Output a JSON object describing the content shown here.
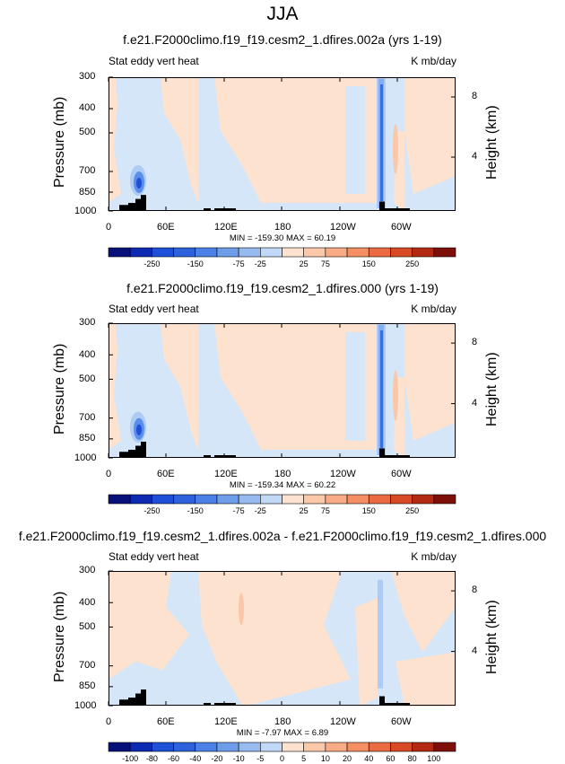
{
  "figure_title": "JJA",
  "colors": {
    "ocean_light_blue": "#d4e6f7",
    "land_peach": "#fde3cf",
    "jet_blue": "#3a6fe0",
    "topo_black": "#000000"
  },
  "chart_data": [
    {
      "type": "heatmap",
      "title": "f.e21.F2000climo.f19_f19.cesm2_1.dfires.002a (yrs 1-19)",
      "left_label": "Stat eddy vert heat",
      "units": "K mb/day",
      "xlabel": "",
      "ylabel": "Pressure (mb)",
      "ylabel_right": "Height (km)",
      "xticks": [
        "0",
        "60E",
        "120E",
        "180",
        "120W",
        "60W"
      ],
      "yticks": [
        "300",
        "400",
        "500",
        "700",
        "850",
        "1000"
      ],
      "yticks_right": [
        "8",
        "4"
      ],
      "min_max_text": "MIN = -159.30   MAX = 60.19",
      "min": -159.3,
      "max": 60.19,
      "colorbar_labels": [
        "-250",
        "-150",
        "-75",
        "-25",
        "25",
        "75",
        "150",
        "250"
      ],
      "colorbar_levels": [
        -250,
        -200,
        -150,
        -100,
        -75,
        -50,
        -25,
        0,
        25,
        50,
        75,
        100,
        150,
        200,
        250
      ]
    },
    {
      "type": "heatmap",
      "title": "f.e21.F2000climo.f19_f19.cesm2_1.dfires.000 (yrs 1-19)",
      "left_label": "Stat eddy vert heat",
      "units": "K mb/day",
      "xlabel": "",
      "ylabel": "Pressure (mb)",
      "ylabel_right": "Height (km)",
      "xticks": [
        "0",
        "60E",
        "120E",
        "180",
        "120W",
        "60W"
      ],
      "yticks": [
        "300",
        "400",
        "500",
        "700",
        "850",
        "1000"
      ],
      "yticks_right": [
        "8",
        "4"
      ],
      "min_max_text": "MIN = -159.34   MAX = 60.22",
      "min": -159.34,
      "max": 60.22,
      "colorbar_labels": [
        "-250",
        "-150",
        "-75",
        "-25",
        "25",
        "75",
        "150",
        "250"
      ],
      "colorbar_levels": [
        -250,
        -200,
        -150,
        -100,
        -75,
        -50,
        -25,
        0,
        25,
        50,
        75,
        100,
        150,
        200,
        250
      ]
    },
    {
      "type": "heatmap",
      "title": "f.e21.F2000climo.f19_f19.cesm2_1.dfires.002a - f.e21.F2000climo.f19_f19.cesm2_1.dfires.000",
      "left_label": "Stat eddy vert heat",
      "units": "K mb/day",
      "xlabel": "",
      "ylabel": "Pressure (mb)",
      "ylabel_right": "Height (km)",
      "xticks": [
        "0",
        "60E",
        "120E",
        "180",
        "120W",
        "60W"
      ],
      "yticks": [
        "300",
        "400",
        "500",
        "700",
        "850",
        "1000"
      ],
      "yticks_right": [
        "8",
        "4"
      ],
      "min_max_text": "MIN = -7.97   MAX = 6.89",
      "min": -7.97,
      "max": 6.89,
      "colorbar_labels": [
        "-100",
        "-80",
        "-60",
        "-40",
        "-20",
        "-10",
        "-5",
        "0",
        "5",
        "10",
        "20",
        "40",
        "60",
        "80",
        "100"
      ],
      "colorbar_levels": [
        -100,
        -80,
        -60,
        -40,
        -20,
        -10,
        -5,
        0,
        5,
        10,
        20,
        40,
        60,
        80,
        100
      ]
    }
  ]
}
